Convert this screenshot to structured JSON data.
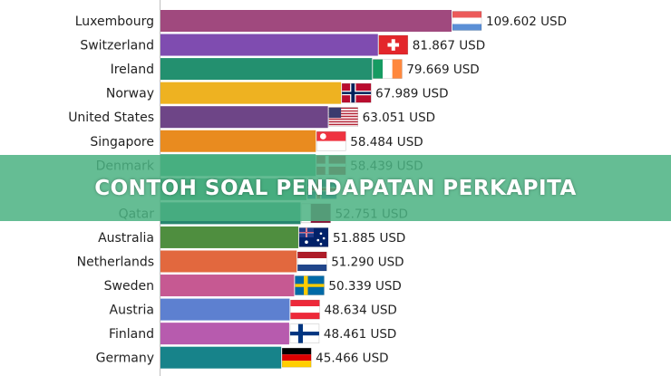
{
  "banner": {
    "title": "CONTOH SOAL PENDAPATAN PERKAPITA"
  },
  "chart_data": {
    "type": "bar",
    "orientation": "horizontal",
    "unit": "USD",
    "categories": [
      "Luxembourg",
      "Switzerland",
      "Ireland",
      "Norway",
      "United States",
      "Singapore",
      "Denmark",
      "Iceland",
      "Qatar",
      "Australia",
      "Netherlands",
      "Sweden",
      "Austria",
      "Finland",
      "Germany"
    ],
    "values": [
      109602,
      81867,
      79669,
      67989,
      63051,
      58484,
      58439,
      55000,
      52751,
      51885,
      51290,
      50339,
      48634,
      48461,
      45466
    ],
    "value_labels": [
      "109.602 USD",
      "81.867 USD",
      "79.669 USD",
      "67.989 USD",
      "63.051 USD",
      "58.484 USD",
      "58.439 USD",
      "",
      "52.751 USD",
      "51.885 USD",
      "51.290 USD",
      "50.339 USD",
      "48.634 USD",
      "48.461 USD",
      "45.466 USD"
    ],
    "category_labels": [
      "Luxembourg",
      "Switzerland",
      "Ireland",
      "Norway",
      "United States",
      "Singapore",
      "Denmark",
      "",
      "Qatar",
      "Australia",
      "Netherlands",
      "Sweden",
      "Austria",
      "Finland",
      "Germany"
    ],
    "colors": [
      "#a0497e",
      "#7f4cb0",
      "#23906f",
      "#eeb221",
      "#6e4587",
      "#e98b1f",
      "#2c9d74",
      "#2f8f6a",
      "#27866f",
      "#4f8e3f",
      "#e2683e",
      "#c65992",
      "#5d80d0",
      "#b75bae",
      "#17838a"
    ],
    "flags": [
      "netherlands-like-flag",
      "switzerland-flag",
      "ireland-flag",
      "norway-flag",
      "usa-flag",
      "singapore-flag",
      "denmark-flag",
      "iceland-flag",
      "qatar-flag",
      "australia-flag",
      "netherlands-flag",
      "sweden-flag",
      "austria-flag",
      "finland-flag",
      "germany-flag"
    ],
    "xlim": [
      0,
      109602
    ],
    "grid": false,
    "legend": "none"
  }
}
